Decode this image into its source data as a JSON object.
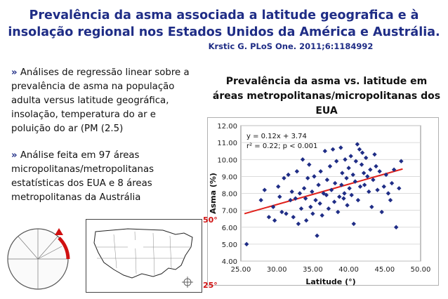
{
  "header": {
    "title_line1": "Prevalência da asma associada a latitude geografica e à",
    "title_line2": "insolação regional nos Estados Unidos da América e Austrália.",
    "citation": "Krstic G. PLoS One. 2011;6:1184992"
  },
  "bullets": [
    {
      "marker": "»",
      "text": "Análises de regressão linear sobre a prevalência de asma na população adulta versus latitude geográfica, insolação, temperatura do ar e poluição do ar (PM (2.5)"
    },
    {
      "marker": "»",
      "text": "Análise feita em 97 áreas micropolitanas/metropolitanas estatísticas dos EUA e 8 áreas metropolitanas da Austrália"
    }
  ],
  "chart_title": {
    "line1": "Prevalência da asma vs. latitude em",
    "line2": "áreas metropolitanas/micropolitanas dos EUA"
  },
  "colors": {
    "title": "#1f2d86",
    "points": "#1f2d86",
    "trendline": "#e0201a",
    "accent": "#d01010"
  },
  "map": {
    "label_50": "50°",
    "label_25": "25°"
  },
  "chart_data": {
    "type": "scatter",
    "xlabel": "Latitude (°)",
    "ylabel": "Asma (%)",
    "xlim": [
      25,
      50
    ],
    "ylim": [
      4,
      12
    ],
    "xticks": [
      "25.00",
      "30.00",
      "35.00",
      "40.00",
      "45.00",
      "50.00"
    ],
    "yticks": [
      "4.00",
      "5.00",
      "6.00",
      "7.00",
      "8.00",
      "9.00",
      "10.00",
      "11.00",
      "12.00"
    ],
    "grid": true,
    "annotations": [
      "y = 0.12x + 3.74",
      "r² = 0.22;  p < 0.001"
    ],
    "trendline": {
      "slope": 0.12,
      "intercept": 3.74,
      "x_range": [
        25.5,
        47.5
      ]
    },
    "points": [
      [
        25.8,
        5.0
      ],
      [
        27.8,
        7.6
      ],
      [
        28.3,
        8.2
      ],
      [
        28.9,
        6.6
      ],
      [
        29.5,
        7.2
      ],
      [
        29.7,
        6.4
      ],
      [
        30.2,
        8.4
      ],
      [
        30.4,
        7.8
      ],
      [
        30.7,
        6.9
      ],
      [
        31.0,
        8.9
      ],
      [
        31.3,
        6.8
      ],
      [
        31.6,
        9.1
      ],
      [
        31.9,
        7.6
      ],
      [
        32.1,
        8.1
      ],
      [
        32.3,
        6.6
      ],
      [
        32.6,
        7.7
      ],
      [
        32.8,
        9.3
      ],
      [
        33.0,
        6.2
      ],
      [
        33.2,
        8.0
      ],
      [
        33.4,
        7.1
      ],
      [
        33.6,
        10.0
      ],
      [
        33.8,
        8.3
      ],
      [
        34.0,
        7.7
      ],
      [
        34.1,
        6.4
      ],
      [
        34.3,
        8.9
      ],
      [
        34.5,
        9.7
      ],
      [
        34.7,
        7.2
      ],
      [
        34.9,
        8.1
      ],
      [
        35.0,
        6.8
      ],
      [
        35.2,
        9.0
      ],
      [
        35.4,
        7.6
      ],
      [
        35.6,
        5.5
      ],
      [
        35.8,
        8.5
      ],
      [
        36.0,
        7.4
      ],
      [
        36.1,
        9.3
      ],
      [
        36.3,
        6.7
      ],
      [
        36.5,
        8.0
      ],
      [
        36.7,
        10.5
      ],
      [
        36.9,
        7.9
      ],
      [
        37.0,
        8.8
      ],
      [
        37.2,
        7.1
      ],
      [
        37.4,
        9.6
      ],
      [
        37.6,
        8.2
      ],
      [
        37.8,
        10.6
      ],
      [
        38.0,
        7.5
      ],
      [
        38.1,
        8.6
      ],
      [
        38.3,
        9.9
      ],
      [
        38.5,
        6.9
      ],
      [
        38.7,
        7.8
      ],
      [
        38.9,
        10.7
      ],
      [
        39.0,
        8.5
      ],
      [
        39.1,
        9.2
      ],
      [
        39.3,
        7.7
      ],
      [
        39.4,
        8.0
      ],
      [
        39.5,
        10.0
      ],
      [
        39.7,
        8.9
      ],
      [
        39.8,
        7.3
      ],
      [
        40.0,
        9.5
      ],
      [
        40.1,
        8.3
      ],
      [
        40.3,
        10.2
      ],
      [
        40.4,
        7.9
      ],
      [
        40.6,
        9.1
      ],
      [
        40.7,
        6.2
      ],
      [
        40.9,
        8.7
      ],
      [
        41.0,
        9.9
      ],
      [
        41.2,
        10.9
      ],
      [
        41.3,
        7.6
      ],
      [
        41.5,
        10.6
      ],
      [
        41.6,
        8.4
      ],
      [
        41.8,
        9.7
      ],
      [
        41.9,
        10.4
      ],
      [
        42.1,
        9.2
      ],
      [
        42.2,
        8.5
      ],
      [
        42.4,
        10.1
      ],
      [
        42.6,
        9.0
      ],
      [
        42.8,
        8.1
      ],
      [
        43.0,
        9.4
      ],
      [
        43.2,
        7.2
      ],
      [
        43.4,
        8.8
      ],
      [
        43.6,
        10.3
      ],
      [
        43.8,
        9.6
      ],
      [
        44.0,
        8.2
      ],
      [
        44.3,
        9.3
      ],
      [
        44.6,
        6.9
      ],
      [
        44.9,
        8.4
      ],
      [
        45.2,
        9.1
      ],
      [
        45.5,
        8.0
      ],
      [
        45.8,
        7.6
      ],
      [
        46.0,
        8.6
      ],
      [
        46.3,
        9.4
      ],
      [
        46.6,
        6.0
      ],
      [
        47.0,
        8.3
      ],
      [
        47.3,
        9.9
      ]
    ]
  }
}
